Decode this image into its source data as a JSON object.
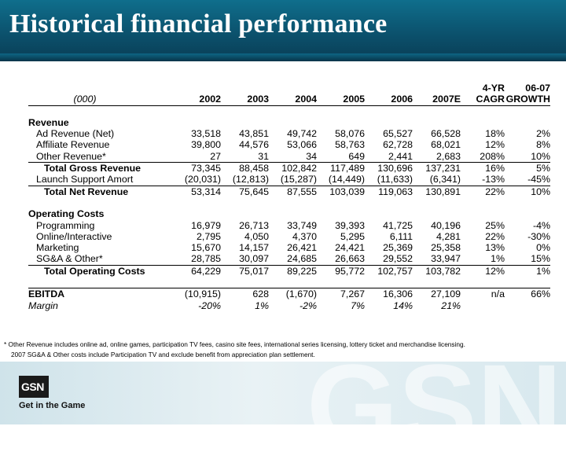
{
  "slide": {
    "title": "Historical financial performance",
    "footnote_line1": "* Other Revenue includes online ad, online games, participation TV fees, casino site fees, international series licensing, lottery ticket and merchandise licensing.",
    "footnote_line2": "2007 SG&A & Other costs include Participation TV and exclude benefit from appreciation plan settlement.",
    "logo_text": "GSN",
    "tagline": "Get in the Game",
    "watermark_text": "GSN"
  },
  "table": {
    "header_top": [
      "",
      "",
      "",
      "",
      "",
      "",
      "",
      "4-YR",
      "06-07"
    ],
    "header_main": [
      "(000)",
      "2002",
      "2003",
      "2004",
      "2005",
      "2006",
      "2007E",
      "CAGR",
      "GROWTH"
    ],
    "revenue_section": "Revenue",
    "rev_rows": [
      {
        "label": "Ad Revenue (Net)",
        "vals": [
          "33,518",
          "43,851",
          "49,742",
          "58,076",
          "65,527",
          "66,528",
          "18%",
          "2%"
        ]
      },
      {
        "label": "Affiliate Revenue",
        "vals": [
          "39,800",
          "44,576",
          "53,066",
          "58,763",
          "62,728",
          "68,021",
          "12%",
          "8%"
        ]
      },
      {
        "label": "Other Revenue*",
        "vals": [
          "27",
          "31",
          "34",
          "649",
          "2,441",
          "2,683",
          "208%",
          "10%"
        ]
      }
    ],
    "gross": {
      "label": "Total Gross Revenue",
      "vals": [
        "73,345",
        "88,458",
        "102,842",
        "117,489",
        "130,696",
        "137,231",
        "16%",
        "5%"
      ]
    },
    "launch": {
      "label": "Launch Support Amort",
      "vals": [
        "(20,031)",
        "(12,813)",
        "(15,287)",
        "(14,449)",
        "(11,633)",
        "(6,341)",
        "-13%",
        "-45%"
      ]
    },
    "net": {
      "label": "Total Net Revenue",
      "vals": [
        "53,314",
        "75,645",
        "87,555",
        "103,039",
        "119,063",
        "130,891",
        "22%",
        "10%"
      ]
    },
    "costs_section": "Operating Costs",
    "cost_rows": [
      {
        "label": "Programming",
        "vals": [
          "16,979",
          "26,713",
          "33,749",
          "39,393",
          "41,725",
          "40,196",
          "25%",
          "-4%"
        ]
      },
      {
        "label": "Online/Interactive",
        "vals": [
          "2,795",
          "4,050",
          "4,370",
          "5,295",
          "6,111",
          "4,281",
          "22%",
          "-30%"
        ]
      },
      {
        "label": "Marketing",
        "vals": [
          "15,670",
          "14,157",
          "26,421",
          "24,421",
          "25,369",
          "25,358",
          "13%",
          "0%"
        ]
      },
      {
        "label": "SG&A & Other*",
        "vals": [
          "28,785",
          "30,097",
          "24,685",
          "26,663",
          "29,552",
          "33,947",
          "1%",
          "15%"
        ]
      }
    ],
    "total_costs": {
      "label": "Total Operating Costs",
      "vals": [
        "64,229",
        "75,017",
        "89,225",
        "95,772",
        "102,757",
        "103,782",
        "12%",
        "1%"
      ]
    },
    "ebitda": {
      "label": "EBITDA",
      "vals": [
        "(10,915)",
        "628",
        "(1,670)",
        "7,267",
        "16,306",
        "27,109",
        "n/a",
        "66%"
      ]
    },
    "margin": {
      "label": "Margin",
      "vals": [
        "-20%",
        "1%",
        "-2%",
        "7%",
        "14%",
        "21%",
        "",
        ""
      ]
    }
  }
}
